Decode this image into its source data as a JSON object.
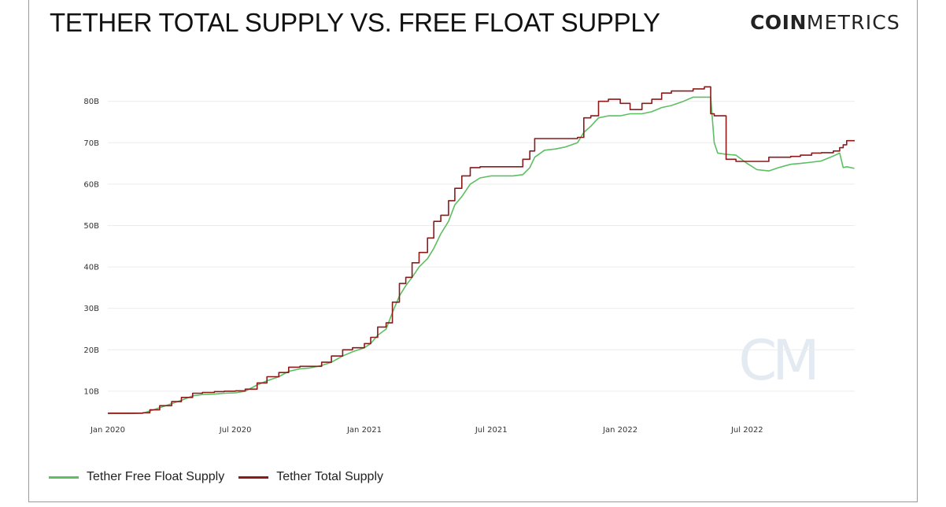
{
  "header": {
    "title": "TETHER TOTAL SUPPLY VS. FREE FLOAT SUPPLY",
    "brand_bold": "COIN",
    "brand_light": "METRICS"
  },
  "watermark": "CM",
  "colors": {
    "free_float": "#5cbf62",
    "total": "#8b1a1a",
    "grid": "#ececec",
    "watermark": "#e3eaf2"
  },
  "chart_data": {
    "type": "line",
    "title": "TETHER TOTAL SUPPLY VS. FREE FLOAT SUPPLY",
    "xlabel": "",
    "ylabel": "",
    "ylim": [
      0,
      85
    ],
    "y_unit": "B",
    "yticks": [
      10,
      20,
      30,
      40,
      50,
      60,
      70,
      80
    ],
    "ytick_labels": [
      "10B",
      "20B",
      "30B",
      "40B",
      "50B",
      "60B",
      "70B",
      "80B"
    ],
    "xticks": [
      "2020-01-01",
      "2020-07-01",
      "2021-01-01",
      "2021-07-01",
      "2022-01-01",
      "2022-07-01"
    ],
    "xtick_labels": [
      "Jan 2020",
      "Jul 2020",
      "Jan 2021",
      "Jul 2021",
      "Jan 2022",
      "Jul 2022"
    ],
    "xlim": [
      "2020-01-01",
      "2022-12-01"
    ],
    "grid": true,
    "legend_position": "bottom-left",
    "series": [
      {
        "name": "Tether Free Float Supply",
        "color": "#5cbf62",
        "x": [
          "2020-01-01",
          "2020-02-01",
          "2020-02-20",
          "2020-03-01",
          "2020-03-15",
          "2020-04-01",
          "2020-04-15",
          "2020-05-01",
          "2020-05-15",
          "2020-06-01",
          "2020-06-15",
          "2020-07-01",
          "2020-07-15",
          "2020-08-01",
          "2020-08-15",
          "2020-09-01",
          "2020-09-15",
          "2020-10-01",
          "2020-10-15",
          "2020-11-01",
          "2020-11-15",
          "2020-12-01",
          "2020-12-15",
          "2021-01-01",
          "2021-01-10",
          "2021-01-20",
          "2021-02-01",
          "2021-02-10",
          "2021-02-20",
          "2021-03-01",
          "2021-03-10",
          "2021-03-20",
          "2021-04-01",
          "2021-04-10",
          "2021-04-20",
          "2021-05-01",
          "2021-05-10",
          "2021-05-20",
          "2021-06-01",
          "2021-06-15",
          "2021-07-01",
          "2021-07-15",
          "2021-08-01",
          "2021-08-15",
          "2021-08-25",
          "2021-09-01",
          "2021-09-15",
          "2021-10-01",
          "2021-10-15",
          "2021-11-01",
          "2021-11-10",
          "2021-11-20",
          "2021-12-01",
          "2021-12-15",
          "2022-01-01",
          "2022-01-15",
          "2022-02-01",
          "2022-02-15",
          "2022-03-01",
          "2022-03-15",
          "2022-04-01",
          "2022-04-15",
          "2022-05-01",
          "2022-05-10",
          "2022-05-15",
          "2022-05-20",
          "2022-06-01",
          "2022-06-15",
          "2022-07-01",
          "2022-07-15",
          "2022-08-01",
          "2022-08-15",
          "2022-09-01",
          "2022-09-15",
          "2022-10-01",
          "2022-10-15",
          "2022-11-01",
          "2022-11-10",
          "2022-11-15",
          "2022-11-20",
          "2022-12-01"
        ],
        "values": [
          4.6,
          4.6,
          4.7,
          5.2,
          6.0,
          7.0,
          7.8,
          8.9,
          9.2,
          9.3,
          9.5,
          9.6,
          10.0,
          11.5,
          12.5,
          13.5,
          14.8,
          15.4,
          15.6,
          16.2,
          17.0,
          18.5,
          19.5,
          20.5,
          21.5,
          23.5,
          25.0,
          29.0,
          33.0,
          35.5,
          37.5,
          40.0,
          42.0,
          44.5,
          48.0,
          51.0,
          55.0,
          57.0,
          60.0,
          61.5,
          62.0,
          62.0,
          62.0,
          62.3,
          64.0,
          66.5,
          68.2,
          68.5,
          69.0,
          70.0,
          72.5,
          74.0,
          76.0,
          76.5,
          76.5,
          77.0,
          77.0,
          77.5,
          78.5,
          79.0,
          80.0,
          81.0,
          81.0,
          81.0,
          70.0,
          67.5,
          67.2,
          67.0,
          65.0,
          63.5,
          63.2,
          64.0,
          64.8,
          65.0,
          65.3,
          65.6,
          66.8,
          67.5,
          64.0,
          64.2,
          63.8
        ]
      },
      {
        "name": "Tether Total Supply",
        "color": "#8b1a1a",
        "x": [
          "2020-01-01",
          "2020-02-01",
          "2020-02-20",
          "2020-03-01",
          "2020-03-15",
          "2020-04-01",
          "2020-04-15",
          "2020-05-01",
          "2020-05-15",
          "2020-06-01",
          "2020-06-15",
          "2020-07-01",
          "2020-07-15",
          "2020-08-01",
          "2020-08-15",
          "2020-09-01",
          "2020-09-15",
          "2020-10-01",
          "2020-10-15",
          "2020-11-01",
          "2020-11-15",
          "2020-12-01",
          "2020-12-15",
          "2021-01-01",
          "2021-01-10",
          "2021-01-20",
          "2021-02-01",
          "2021-02-10",
          "2021-02-20",
          "2021-03-01",
          "2021-03-10",
          "2021-03-20",
          "2021-04-01",
          "2021-04-10",
          "2021-04-20",
          "2021-05-01",
          "2021-05-10",
          "2021-05-20",
          "2021-06-01",
          "2021-06-15",
          "2021-07-01",
          "2021-07-15",
          "2021-08-01",
          "2021-08-15",
          "2021-08-25",
          "2021-09-01",
          "2021-09-15",
          "2021-10-01",
          "2021-10-15",
          "2021-11-01",
          "2021-11-10",
          "2021-11-20",
          "2021-12-01",
          "2021-12-15",
          "2022-01-01",
          "2022-01-15",
          "2022-02-01",
          "2022-02-15",
          "2022-03-01",
          "2022-03-15",
          "2022-04-01",
          "2022-04-15",
          "2022-05-01",
          "2022-05-10",
          "2022-05-15",
          "2022-05-20",
          "2022-06-01",
          "2022-06-15",
          "2022-07-01",
          "2022-07-15",
          "2022-08-01",
          "2022-08-15",
          "2022-09-01",
          "2022-09-15",
          "2022-10-01",
          "2022-10-15",
          "2022-11-01",
          "2022-11-10",
          "2022-11-15",
          "2022-11-20",
          "2022-12-01"
        ],
        "values": [
          4.7,
          4.7,
          4.8,
          5.5,
          6.5,
          7.5,
          8.5,
          9.5,
          9.7,
          9.9,
          10.0,
          10.1,
          10.5,
          12.0,
          13.5,
          14.5,
          15.8,
          16.0,
          16.0,
          17.0,
          18.5,
          20.0,
          20.5,
          21.5,
          23.0,
          25.5,
          26.5,
          31.5,
          36.0,
          37.5,
          41.0,
          43.5,
          47.0,
          51.0,
          52.5,
          56.0,
          59.0,
          62.0,
          64.0,
          64.2,
          64.2,
          64.2,
          64.2,
          66.0,
          68.0,
          71.0,
          71.0,
          71.0,
          71.0,
          71.3,
          76.0,
          76.5,
          80.0,
          80.5,
          79.5,
          78.0,
          79.5,
          80.5,
          82.0,
          82.5,
          82.5,
          83.0,
          83.5,
          77.0,
          76.5,
          76.5,
          66.0,
          65.5,
          65.5,
          65.5,
          66.5,
          66.5,
          66.7,
          67.0,
          67.5,
          67.6,
          68.0,
          68.8,
          69.5,
          70.5,
          70.5
        ]
      }
    ]
  }
}
